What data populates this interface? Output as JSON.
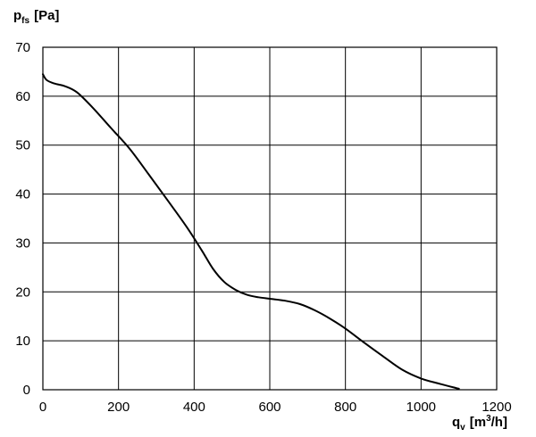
{
  "chart_data": {
    "type": "line",
    "title": "",
    "ylabel": {
      "main": "p",
      "sub": "fs",
      "unit": "[Pa]"
    },
    "xlabel": {
      "main": "q",
      "sub": "v",
      "unit_pre": "[m",
      "unit_sup": "3",
      "unit_post": "/h]"
    },
    "xlim": [
      0,
      1200
    ],
    "ylim": [
      0,
      70
    ],
    "grid": true,
    "x_ticks": [
      0,
      200,
      400,
      600,
      800,
      1000,
      1200
    ],
    "y_ticks": [
      0,
      10,
      20,
      30,
      40,
      50,
      60,
      70
    ],
    "x_tick_labels": [
      "0",
      "200",
      "400",
      "600",
      "800",
      "1000",
      "1200"
    ],
    "y_tick_labels": [
      "0",
      "10",
      "20",
      "30",
      "40",
      "50",
      "60",
      "70"
    ],
    "series": [
      {
        "color": "#000000",
        "x": [
          0,
          10,
          30,
          60,
          90,
          130,
          180,
          230,
          280,
          330,
          380,
          420,
          450,
          480,
          510,
          540,
          570,
          600,
          640,
          680,
          720,
          760,
          800,
          850,
          900,
          950,
          1000,
          1050,
          1100
        ],
        "y": [
          64.5,
          63.3,
          62.6,
          62.0,
          60.8,
          57.8,
          53.5,
          49.2,
          44.0,
          38.7,
          33.3,
          28.5,
          24.7,
          22.0,
          20.4,
          19.4,
          18.9,
          18.6,
          18.2,
          17.5,
          16.2,
          14.5,
          12.5,
          9.6,
          6.8,
          4.1,
          2.3,
          1.2,
          0.2
        ]
      }
    ]
  }
}
